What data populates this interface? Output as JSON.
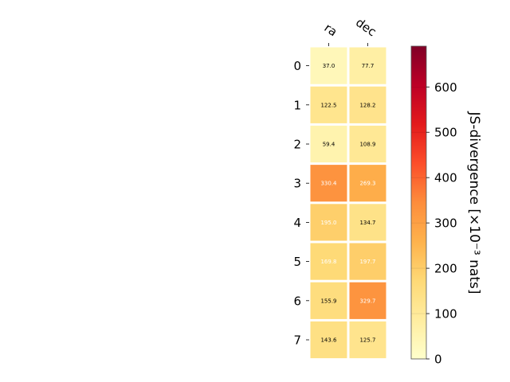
{
  "chart_data": {
    "type": "heatmap",
    "columns": [
      "ra",
      "dec"
    ],
    "rows": [
      "0",
      "1",
      "2",
      "3",
      "4",
      "5",
      "6",
      "7"
    ],
    "values": [
      [
        37.0,
        77.7
      ],
      [
        122.5,
        128.2
      ],
      [
        59.4,
        108.9
      ],
      [
        330.4,
        269.3
      ],
      [
        195.0,
        134.7
      ],
      [
        169.8,
        197.7
      ],
      [
        155.9,
        329.7
      ],
      [
        143.6,
        125.7
      ]
    ],
    "value_labels": [
      [
        "37.0",
        "77.7"
      ],
      [
        "122.5",
        "128.2"
      ],
      [
        "59.4",
        "108.9"
      ],
      [
        "330.4",
        "269.3"
      ],
      [
        "195.0",
        "134.7"
      ],
      [
        "169.8",
        "197.7"
      ],
      [
        "155.9",
        "329.7"
      ],
      [
        "143.6",
        "125.7"
      ]
    ],
    "light_text_cells": [
      [
        3,
        0
      ],
      [
        3,
        1
      ],
      [
        4,
        0
      ],
      [
        5,
        0
      ],
      [
        5,
        1
      ],
      [
        6,
        1
      ]
    ],
    "colormap": "YlOrRd",
    "colorbar": {
      "label": "JS-divergence [×10⁻³ nats]",
      "range": [
        0,
        690
      ],
      "ticks": [
        "0",
        "100",
        "200",
        "300",
        "400",
        "500",
        "600"
      ],
      "tick_values": [
        0,
        100,
        200,
        300,
        400,
        500,
        600
      ]
    },
    "grid": false,
    "xlabel": "",
    "ylabel": ""
  }
}
